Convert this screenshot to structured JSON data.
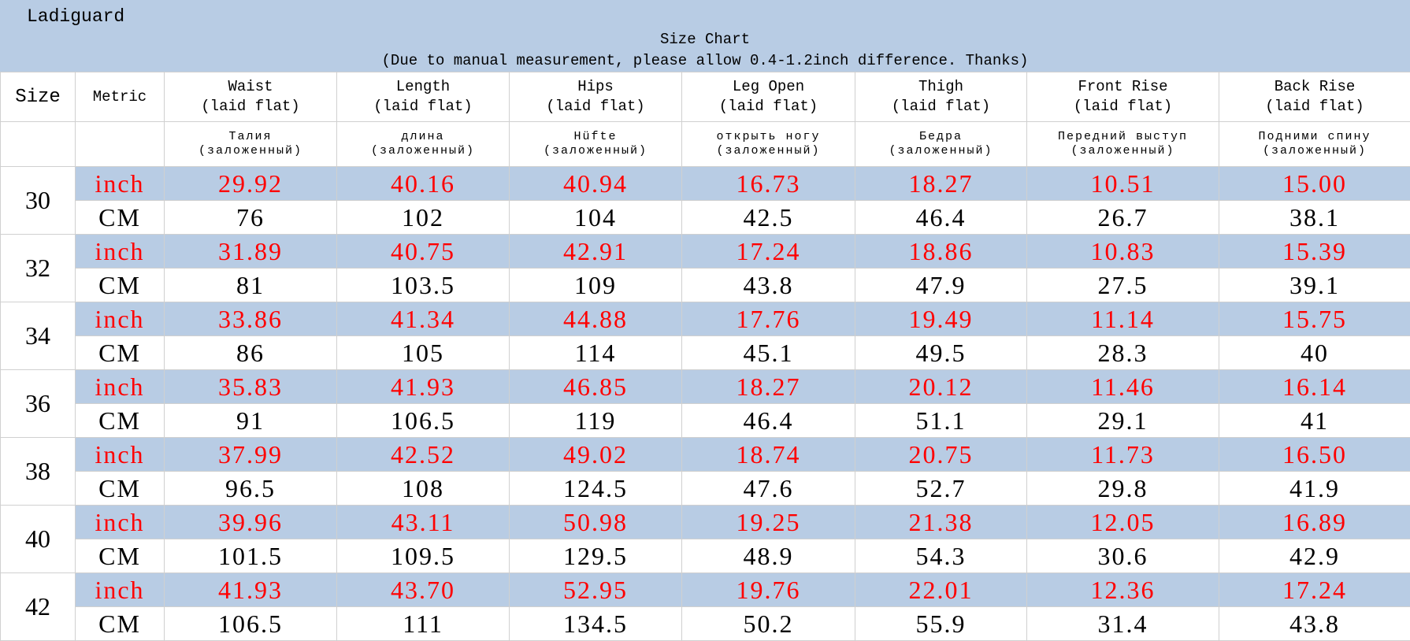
{
  "header": {
    "brand": "Ladiguard",
    "title": "Size Chart",
    "subtitle": "(Due to manual measurement, please allow 0.4-1.2inch difference. Thanks)"
  },
  "table": {
    "size_label": "Size",
    "metric_label": "Metric",
    "columns": [
      {
        "name": "Waist",
        "sub": "(laid flat)",
        "ru": "Талия",
        "ru_sub": "(заложенный)"
      },
      {
        "name": "Length",
        "sub": "(laid flat)",
        "ru": "длина",
        "ru_sub": "(заложенный)"
      },
      {
        "name": "Hips",
        "sub": "(laid flat)",
        "ru": "Hüfte",
        "ru_sub": "(заложенный)"
      },
      {
        "name": "Leg Open",
        "sub": "(laid flat)",
        "ru": "открыть ногу",
        "ru_sub": "(заложенный)"
      },
      {
        "name": "Thigh",
        "sub": "(laid flat)",
        "ru": "Бедра",
        "ru_sub": "(заложенный)"
      },
      {
        "name": "Front Rise",
        "sub": "(laid flat)",
        "ru": "Передний выступ",
        "ru_sub": "(заложенный)"
      },
      {
        "name": "Back Rise",
        "sub": "(laid flat)",
        "ru": "Подними спину",
        "ru_sub": "(заложенный)"
      }
    ],
    "rows": [
      {
        "size": "30",
        "inch": {
          "metric": "inch",
          "values": [
            "29.92",
            "40.16",
            "40.94",
            "16.73",
            "18.27",
            "10.51",
            "15.00"
          ]
        },
        "cm": {
          "metric": "CM",
          "values": [
            "76",
            "102",
            "104",
            "42.5",
            "46.4",
            "26.7",
            "38.1"
          ]
        }
      },
      {
        "size": "32",
        "inch": {
          "metric": "inch",
          "values": [
            "31.89",
            "40.75",
            "42.91",
            "17.24",
            "18.86",
            "10.83",
            "15.39"
          ]
        },
        "cm": {
          "metric": "CM",
          "values": [
            "81",
            "103.5",
            "109",
            "43.8",
            "47.9",
            "27.5",
            "39.1"
          ]
        }
      },
      {
        "size": "34",
        "inch": {
          "metric": "inch",
          "values": [
            "33.86",
            "41.34",
            "44.88",
            "17.76",
            "19.49",
            "11.14",
            "15.75"
          ]
        },
        "cm": {
          "metric": "CM",
          "values": [
            "86",
            "105",
            "114",
            "45.1",
            "49.5",
            "28.3",
            "40"
          ]
        }
      },
      {
        "size": "36",
        "inch": {
          "metric": "inch",
          "values": [
            "35.83",
            "41.93",
            "46.85",
            "18.27",
            "20.12",
            "11.46",
            "16.14"
          ]
        },
        "cm": {
          "metric": "CM",
          "values": [
            "91",
            "106.5",
            "119",
            "46.4",
            "51.1",
            "29.1",
            "41"
          ]
        }
      },
      {
        "size": "38",
        "inch": {
          "metric": "inch",
          "values": [
            "37.99",
            "42.52",
            "49.02",
            "18.74",
            "20.75",
            "11.73",
            "16.50"
          ]
        },
        "cm": {
          "metric": "CM",
          "values": [
            "96.5",
            "108",
            "124.5",
            "47.6",
            "52.7",
            "29.8",
            "41.9"
          ]
        }
      },
      {
        "size": "40",
        "inch": {
          "metric": "inch",
          "values": [
            "39.96",
            "43.11",
            "50.98",
            "19.25",
            "21.38",
            "12.05",
            "16.89"
          ]
        },
        "cm": {
          "metric": "CM",
          "values": [
            "101.5",
            "109.5",
            "129.5",
            "48.9",
            "54.3",
            "30.6",
            "42.9"
          ]
        }
      },
      {
        "size": "42",
        "inch": {
          "metric": "inch",
          "values": [
            "41.93",
            "43.70",
            "52.95",
            "19.76",
            "22.01",
            "12.36",
            "17.24"
          ]
        },
        "cm": {
          "metric": "CM",
          "values": [
            "106.5",
            "111",
            "134.5",
            "50.2",
            "55.9",
            "31.4",
            "43.8"
          ]
        }
      }
    ]
  }
}
